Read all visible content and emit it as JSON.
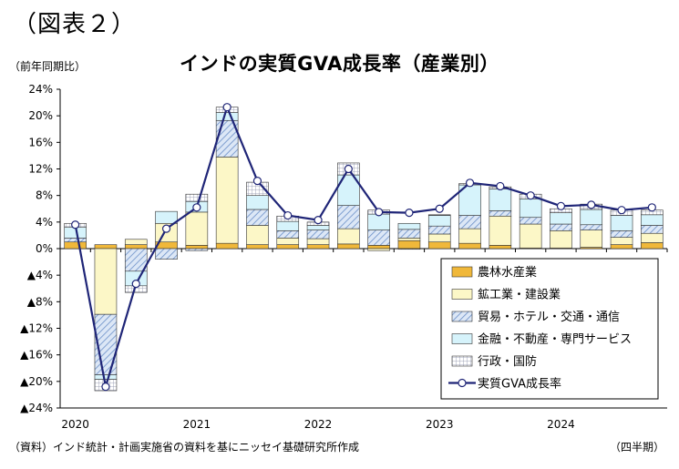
{
  "figure_label": "（図表２）",
  "unit_label": "（前年同期比）",
  "source_note": "（資料）インド統計・計画実施省の資料を基にニッセイ基礎研究所作成",
  "x_unit": "（四半期）",
  "colors": {
    "agriculture": "#f0b83a",
    "industry": "#fcf7c7",
    "trade": "#a7bfe2",
    "finance": "#d6f3fb",
    "public": "#e3e6ef",
    "line": "#1f2577"
  },
  "chart_data": {
    "type": "bar",
    "title": "インドの実質GVA成長率（産業別）",
    "xlabel": "",
    "ylabel": "",
    "ylim": [
      -24,
      24
    ],
    "yticks": [
      24,
      20,
      16,
      12,
      8,
      4,
      0,
      -4,
      -8,
      -12,
      -16,
      -20,
      -24
    ],
    "ytick_labels": [
      "24%",
      "20%",
      "16%",
      "12%",
      "8%",
      "4%",
      "0%",
      "▲4%",
      "▲8%",
      "▲12%",
      "▲16%",
      "▲20%",
      "▲24%"
    ],
    "year_labels": [
      "2020",
      "2021",
      "2022",
      "2023",
      "2024"
    ],
    "year_start_index": [
      0,
      4,
      8,
      12,
      16
    ],
    "categories": [
      "2020Q1",
      "2020Q2",
      "2020Q3",
      "2020Q4",
      "2021Q1",
      "2021Q2",
      "2021Q3",
      "2021Q4",
      "2022Q1",
      "2022Q2",
      "2022Q3",
      "2022Q4",
      "2023Q1",
      "2023Q2",
      "2023Q3",
      "2023Q4",
      "2024Q1",
      "2024Q2",
      "2024Q3",
      "2024Q4"
    ],
    "legend_position": "bottom-right",
    "series": [
      {
        "name": "農林水産業",
        "key": "agriculture",
        "values": [
          1.0,
          0.6,
          0.6,
          1.0,
          0.5,
          0.8,
          0.6,
          0.6,
          0.6,
          0.7,
          0.5,
          1.2,
          1.0,
          0.8,
          0.5,
          0.1,
          0.1,
          0.2,
          0.6,
          0.9
        ]
      },
      {
        "name": "鉱工業・建設業",
        "key": "industry",
        "values": [
          0.0,
          -9.9,
          0.8,
          2.8,
          5.0,
          13.0,
          2.9,
          1.0,
          0.9,
          2.3,
          -0.3,
          0.4,
          1.2,
          2.2,
          4.4,
          3.6,
          2.6,
          2.6,
          1.1,
          1.4
        ]
      },
      {
        "name": "貿易・ホテル・交通・通信",
        "key": "trade",
        "values": [
          0.6,
          -9.1,
          -3.4,
          -1.6,
          -0.3,
          5.5,
          2.4,
          1.1,
          1.3,
          3.5,
          2.3,
          1.3,
          1.2,
          2.0,
          0.8,
          1.0,
          1.0,
          0.8,
          1.0,
          1.2
        ]
      },
      {
        "name": "金融・不動産・専門サービス",
        "key": "finance",
        "values": [
          1.6,
          -0.7,
          -2.2,
          1.8,
          1.6,
          1.2,
          2.1,
          1.4,
          0.7,
          4.6,
          2.4,
          0.9,
          1.6,
          4.6,
          3.3,
          2.8,
          1.7,
          2.3,
          2.3,
          1.6
        ]
      },
      {
        "name": "行政・国防",
        "key": "public",
        "values": [
          0.6,
          -1.7,
          -1.0,
          0.0,
          1.1,
          0.8,
          2.0,
          0.8,
          0.5,
          1.8,
          0.6,
          -0.1,
          0.1,
          0.2,
          0.3,
          0.7,
          0.6,
          0.8,
          0.8,
          0.7
        ]
      }
    ],
    "line_series": {
      "name": "実質GVA成長率",
      "values": [
        3.6,
        -20.8,
        -5.3,
        3.0,
        6.2,
        21.3,
        10.2,
        5.0,
        4.3,
        12.0,
        5.5,
        5.4,
        6.0,
        9.9,
        9.4,
        8.0,
        6.4,
        6.6,
        5.8,
        6.2
      ]
    }
  }
}
